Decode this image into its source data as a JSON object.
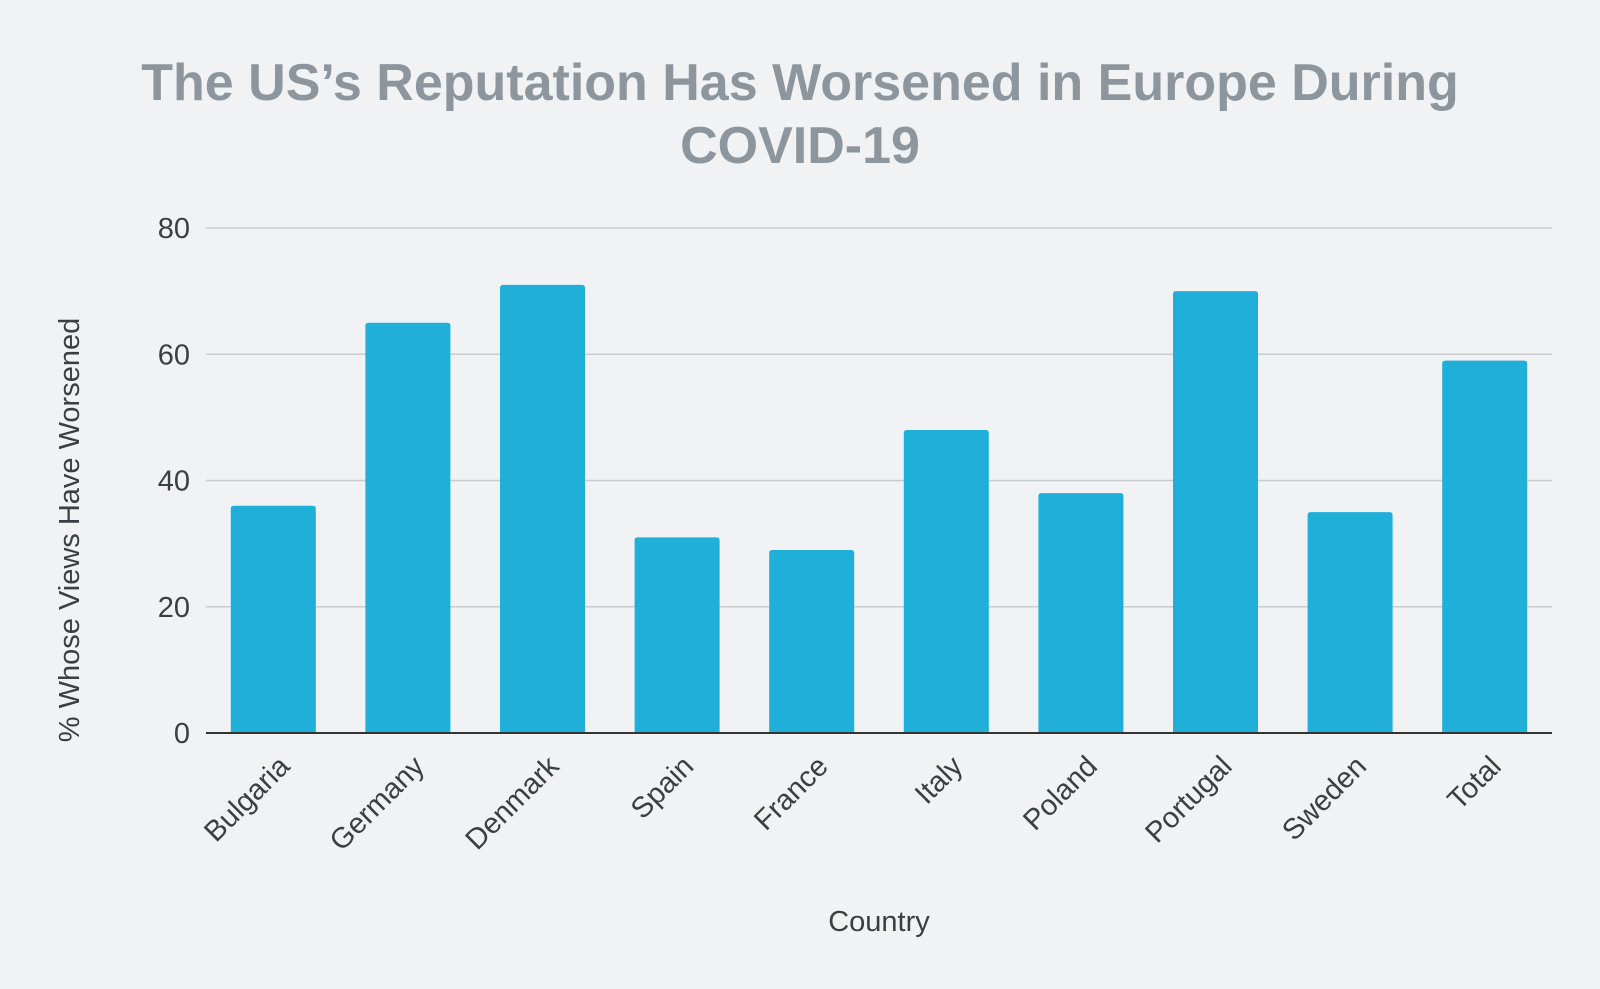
{
  "chart_data": {
    "type": "bar",
    "title_lines": [
      "The US’s Reputation Has Worsened in Europe During",
      "COVID-19"
    ],
    "xlabel": "Country",
    "ylabel": "% Whose Views Have Worsened",
    "categories": [
      "Bulgaria",
      "Germany",
      "Denmark",
      "Spain",
      "France",
      "Italy",
      "Poland",
      "Portugal",
      "Sweden",
      "Total"
    ],
    "values": [
      36,
      65,
      71,
      31,
      29,
      48,
      38,
      70,
      35,
      59
    ],
    "ylim": [
      0,
      80
    ],
    "yticks": [
      "0",
      "20",
      "40",
      "60",
      "80"
    ],
    "grid": true,
    "legend": "none",
    "colors": {
      "bar": "#1fafd9",
      "gridline": "#c9cccf",
      "baseline": "#333333",
      "title": "#8e969d",
      "background": "#f1f2f4"
    }
  }
}
